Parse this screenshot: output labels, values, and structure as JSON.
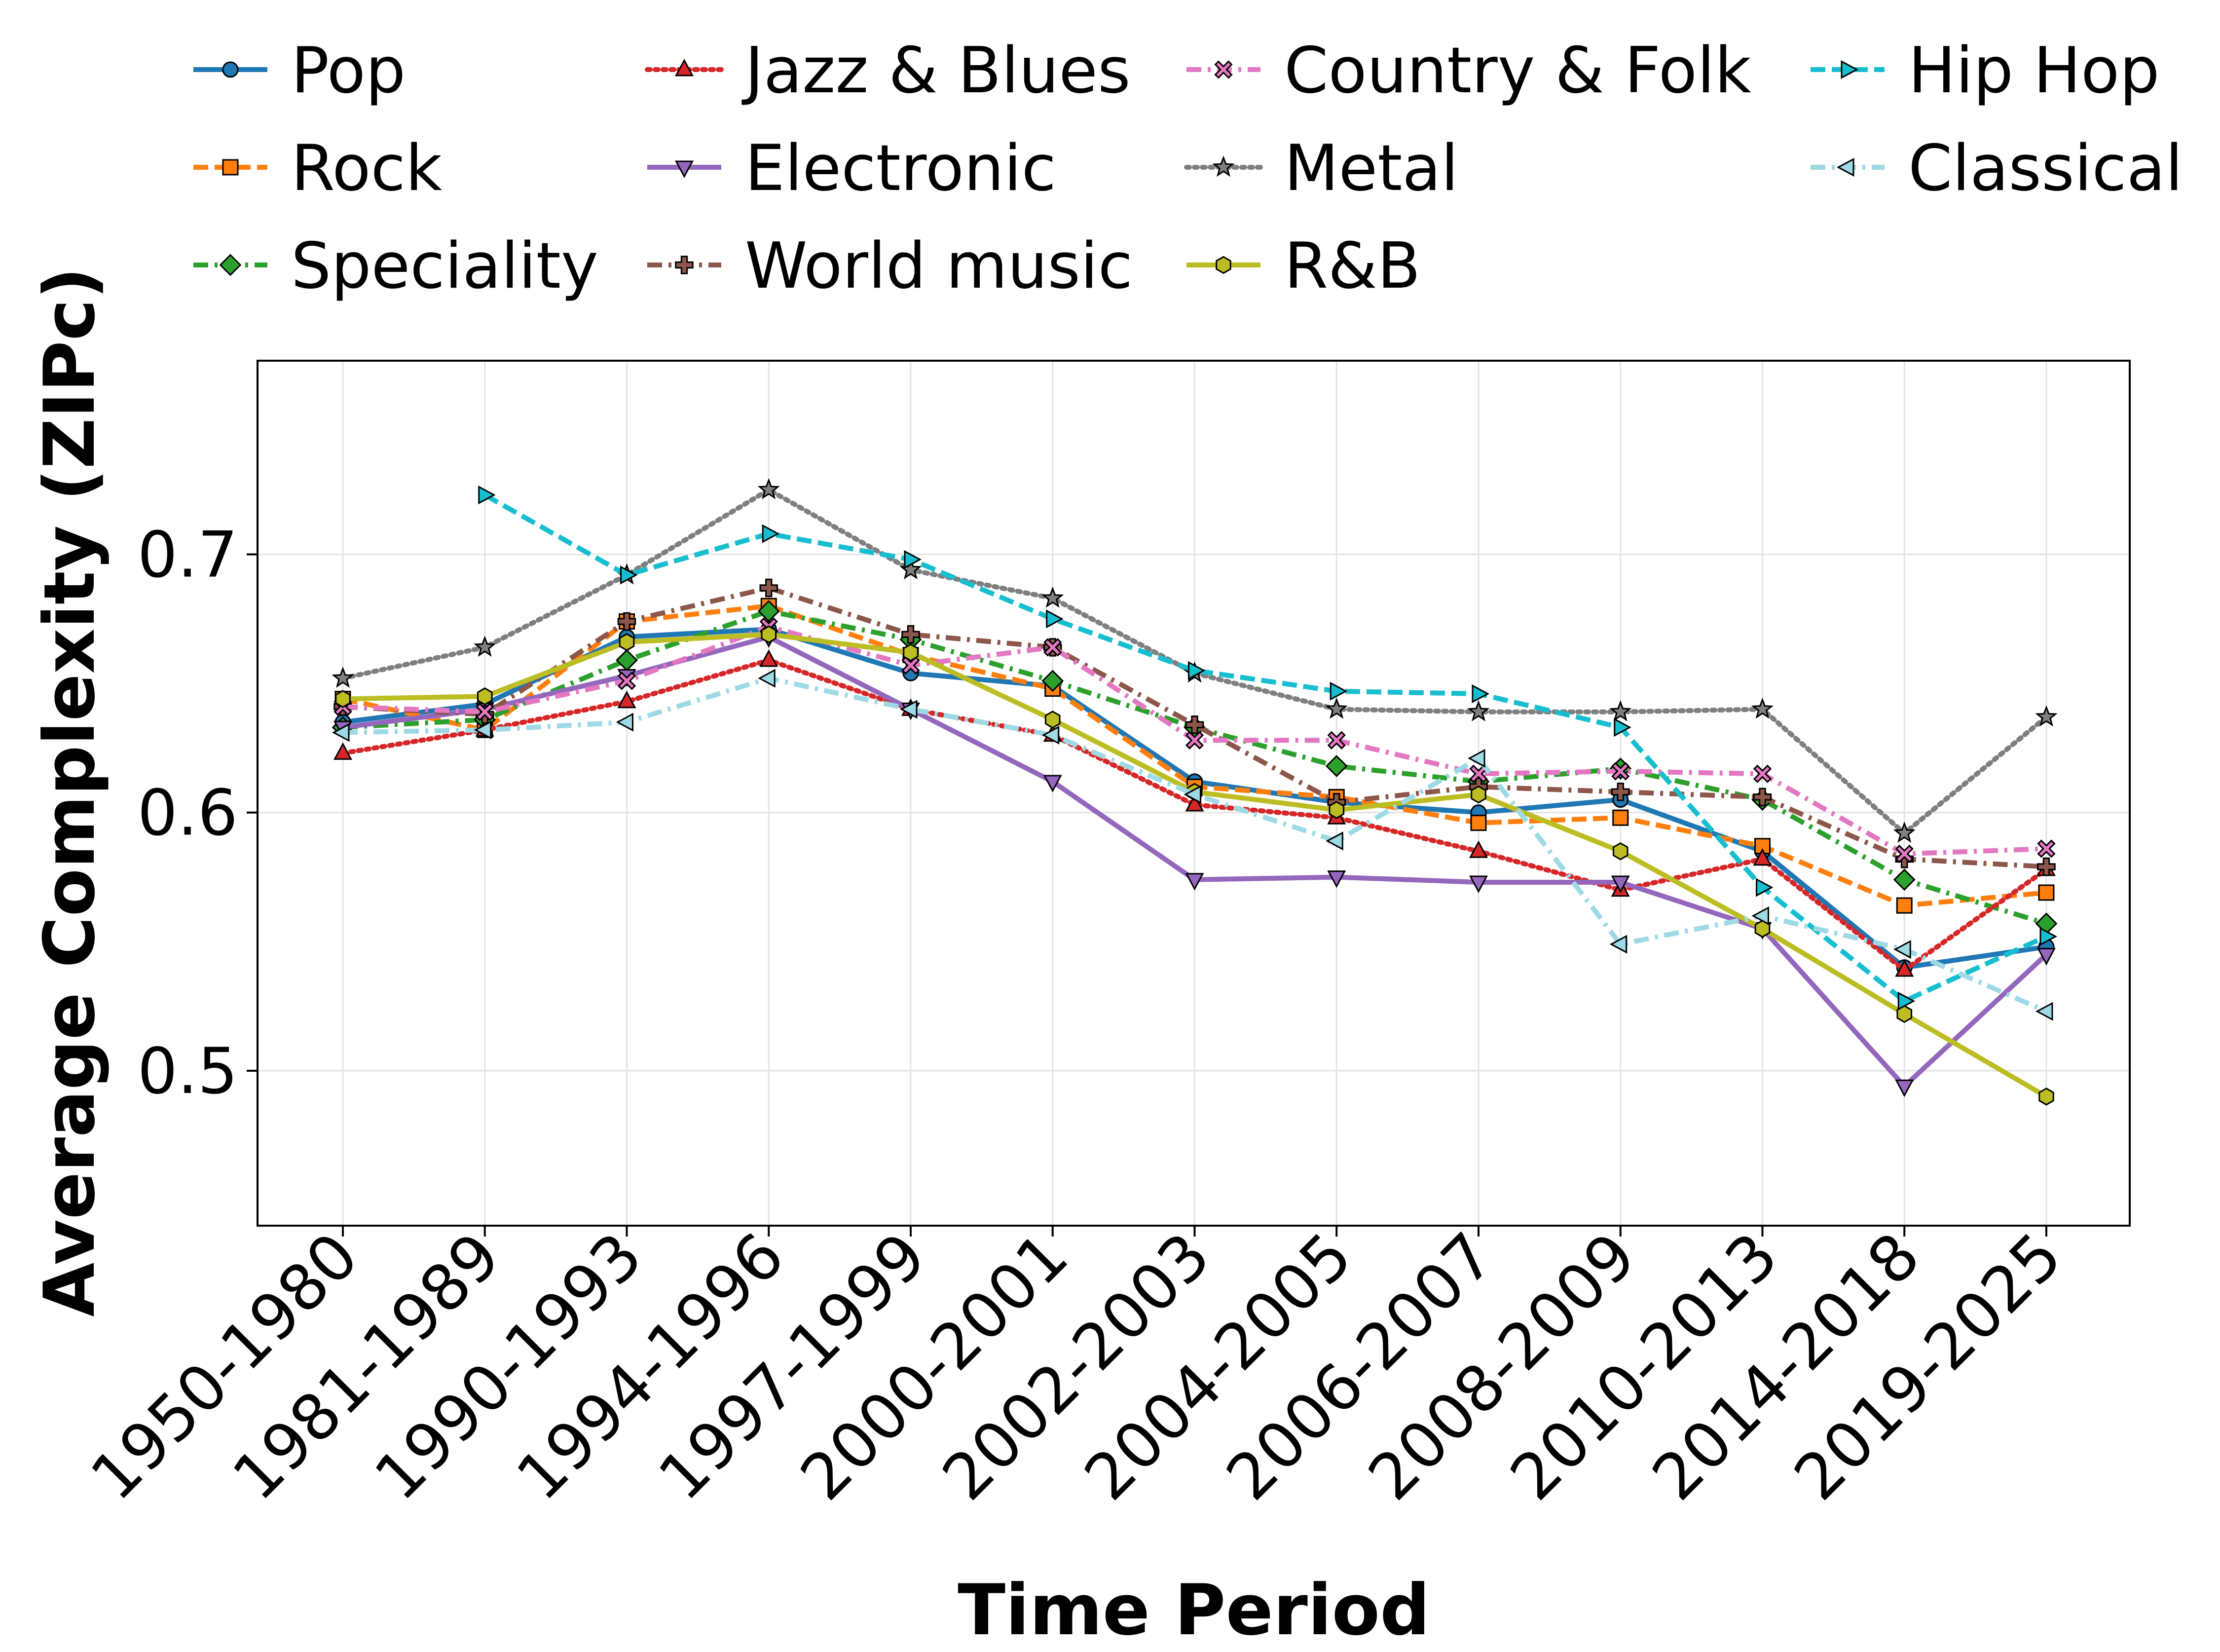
{
  "chart_data": {
    "type": "line",
    "title": "",
    "xlabel": "Time Period",
    "ylabel": "Average Complexity (ZIPc)",
    "ylim": [
      0.44,
      0.775
    ],
    "yticks": [
      0.5,
      0.6,
      0.7
    ],
    "ytick_labels": [
      "0.5",
      "0.6",
      "0.7"
    ],
    "grid": true,
    "legend_position": "top, outside the axes, 4 columns",
    "categories": [
      "1950-1980",
      "1981-1989",
      "1990-1993",
      "1994-1996",
      "1997-1999",
      "2000-2001",
      "2002-2003",
      "2004-2005",
      "2006-2007",
      "2008-2009",
      "2010-2013",
      "2014-2018",
      "2019-2025"
    ],
    "series": [
      {
        "name": "Pop",
        "color": "#1f77b4",
        "dash": "solid",
        "marker": "circle",
        "values": [
          0.635,
          0.642,
          0.668,
          0.671,
          0.654,
          0.649,
          0.612,
          0.604,
          0.6,
          0.605,
          0.585,
          0.54,
          0.548
        ]
      },
      {
        "name": "Rock",
        "color": "#ff7f0e",
        "dash": "dashed",
        "marker": "square",
        "values": [
          0.644,
          0.632,
          0.674,
          0.68,
          0.661,
          0.648,
          0.61,
          0.606,
          0.596,
          0.598,
          0.587,
          0.564,
          0.569
        ]
      },
      {
        "name": "Speciality",
        "color": "#2ca02c",
        "dash": "dashdot",
        "marker": "diamond",
        "values": [
          0.633,
          0.636,
          0.659,
          0.678,
          0.667,
          0.651,
          0.633,
          0.618,
          0.612,
          0.617,
          0.605,
          0.574,
          0.557
        ]
      },
      {
        "name": "Jazz & Blues",
        "color": "#d62728",
        "dash": "dotted",
        "marker": "triangle-up",
        "values": [
          0.623,
          0.632,
          0.643,
          0.659,
          0.64,
          0.63,
          0.603,
          0.598,
          0.585,
          0.57,
          0.582,
          0.539,
          0.578
        ]
      },
      {
        "name": "Electronic",
        "color": "#9467bd",
        "dash": "solid",
        "marker": "triangle-down",
        "values": [
          0.633,
          0.64,
          0.653,
          0.668,
          0.64,
          0.612,
          0.574,
          0.575,
          0.573,
          0.573,
          0.555,
          0.494,
          0.545
        ]
      },
      {
        "name": "World music",
        "color": "#8c564b",
        "dash": "dashdot",
        "marker": "plus",
        "values": [
          0.641,
          0.638,
          0.674,
          0.687,
          0.669,
          0.664,
          0.634,
          0.604,
          0.61,
          0.608,
          0.606,
          0.582,
          0.579
        ]
      },
      {
        "name": "Country & Folk",
        "color": "#e377c2",
        "dash": "dashdot",
        "marker": "x",
        "values": [
          0.641,
          0.639,
          0.651,
          0.672,
          0.657,
          0.664,
          0.628,
          0.628,
          0.615,
          0.616,
          0.615,
          0.584,
          0.586
        ]
      },
      {
        "name": "Metal",
        "color": "#7f7f7f",
        "dash": "dotted",
        "marker": "star",
        "values": [
          0.652,
          0.664,
          0.692,
          0.725,
          0.694,
          0.683,
          0.654,
          0.64,
          0.639,
          0.639,
          0.64,
          0.592,
          0.637
        ]
      },
      {
        "name": "R&B",
        "color": "#bcbd22",
        "dash": "solid",
        "marker": "hexagon",
        "values": [
          0.644,
          0.645,
          0.666,
          0.669,
          0.662,
          0.636,
          0.608,
          0.601,
          0.607,
          0.585,
          0.555,
          0.522,
          0.49
        ]
      },
      {
        "name": "Hip Hop",
        "color": "#17becf",
        "dash": "dashed",
        "marker": "triangle-right",
        "values": [
          null,
          0.723,
          0.692,
          0.708,
          0.698,
          0.675,
          0.655,
          0.647,
          0.646,
          0.633,
          0.571,
          0.527,
          0.552
        ]
      },
      {
        "name": "Classical",
        "color": "#9edae5",
        "dash": "dashdot",
        "marker": "triangle-left",
        "values": [
          0.631,
          0.632,
          0.635,
          0.652,
          0.64,
          0.63,
          0.607,
          0.589,
          0.621,
          0.549,
          0.56,
          0.547,
          0.523
        ]
      }
    ]
  }
}
